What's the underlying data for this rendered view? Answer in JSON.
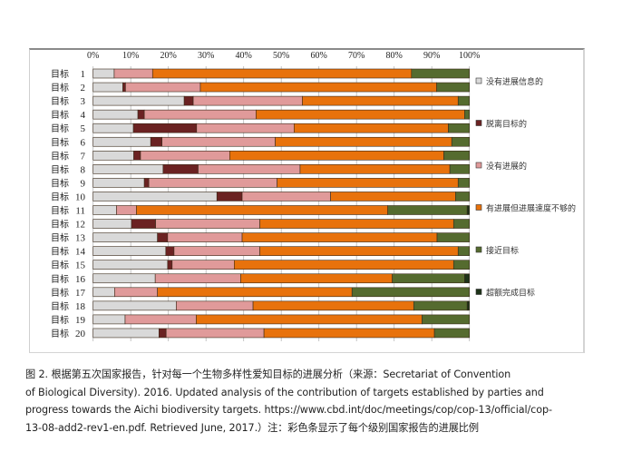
{
  "chart_data": {
    "type": "bar",
    "orientation": "horizontal",
    "stacked": true,
    "percent": true,
    "title": "",
    "xlabel": "",
    "ylabel": "",
    "xlim": [
      0,
      100
    ],
    "x_ticks": [
      "0%",
      "10%",
      "20%",
      "30%",
      "40%",
      "50%",
      "60%",
      "70%",
      "80%",
      "90%",
      "100%"
    ],
    "categories": [
      "目标 1",
      "目标 2",
      "目标 3",
      "目标 4",
      "目标 5",
      "目标 6",
      "目标 7",
      "目标 8",
      "目标 9",
      "目标 10",
      "目标 11",
      "目标 12",
      "目标 13",
      "目标 14",
      "目标 15",
      "目标 16",
      "目标 17",
      "目标 18",
      "目标 19",
      "目标 20"
    ],
    "category_prefix": "目标",
    "category_numbers": [
      "1",
      "2",
      "3",
      "4",
      "5",
      "6",
      "7",
      "8",
      "9",
      "10",
      "11",
      "12",
      "13",
      "14",
      "15",
      "16",
      "17",
      "18",
      "19",
      "20"
    ],
    "legend_position": "right",
    "series": [
      {
        "name": "没有进展信息的",
        "color": "#d9d9d9",
        "values": [
          5.6,
          7.9,
          24.2,
          11.9,
          10.7,
          15.3,
          10.8,
          18.6,
          13.6,
          32.9,
          6.2,
          10.2,
          17.1,
          19.3,
          19.8,
          16.5,
          5.7,
          22.1,
          8.5,
          17.5
        ]
      },
      {
        "name": "脱离目标的",
        "color": "#6b2222",
        "values": [
          0,
          0.7,
          2.4,
          1.7,
          16.8,
          3.0,
          1.8,
          9.3,
          1.2,
          6.7,
          0,
          6.4,
          2.7,
          2.2,
          1.2,
          0,
          0,
          0,
          0,
          1.9
        ]
      },
      {
        "name": "没有进展的",
        "color": "#e09a9a",
        "values": [
          10.2,
          19.9,
          29.0,
          29.7,
          25.9,
          30.1,
          23.7,
          27.1,
          34.1,
          23.5,
          5.3,
          27.7,
          19.8,
          22.8,
          16.5,
          22.7,
          11.4,
          20.4,
          18.9,
          26.0
        ]
      },
      {
        "name": "有进展但进展速度不够的",
        "color": "#e8720c",
        "values": [
          68.8,
          62.8,
          41.4,
          55.4,
          41.0,
          46.9,
          56.9,
          39.8,
          48.1,
          33.2,
          66.8,
          51.5,
          51.8,
          52.7,
          58.3,
          40.3,
          51.7,
          42.7,
          60.0,
          45.3
        ]
      },
      {
        "name": "接近目标",
        "color": "#556b2f",
        "values": [
          15.4,
          8.7,
          3.0,
          1.3,
          5.6,
          4.7,
          6.8,
          5.2,
          3.0,
          3.7,
          21.1,
          4.2,
          8.6,
          3.0,
          4.2,
          19.2,
          31.2,
          14.2,
          12.6,
          9.3
        ]
      },
      {
        "name": "超额完成目标",
        "color": "#1e3319",
        "values": [
          0,
          0,
          0,
          0,
          0,
          0,
          0,
          0,
          0,
          0,
          0.6,
          0,
          0,
          0,
          0,
          1.3,
          0,
          0.6,
          0,
          0
        ]
      }
    ]
  },
  "caption": {
    "lines": [
      "图 2. 根据第五次国家报告，针对每一个生物多样性爱知目标的进展分析（来源：Secretariat of Convention",
      "of Biological Diversity). 2016. Updated analysis of the contribution of targets established by parties and",
      "progress towards the Aichi biodiversity targets. https://www.cbd.int/doc/meetings/cop/cop-13/official/cop-",
      "13-08-add2-rev1-en.pdf. Retrieved June, 2017.）注：彩色条显示了每个级别国家报告的进展比例"
    ]
  }
}
